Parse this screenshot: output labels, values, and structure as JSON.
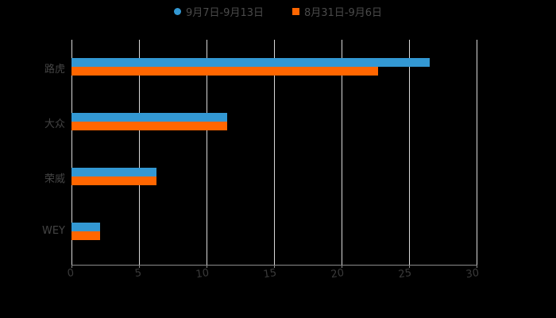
{
  "chart_data": {
    "type": "bar",
    "orientation": "horizontal",
    "title": "",
    "xlabel": "",
    "ylabel": "",
    "xlim": [
      0,
      30
    ],
    "x_ticks": [
      "0",
      "5",
      "10",
      "15",
      "20",
      "25",
      "30"
    ],
    "grid": true,
    "legend_position": "top",
    "categories": [
      "路虎",
      "大众",
      "荣威",
      "WEY"
    ],
    "series": [
      {
        "name": "9月7日-9月13日",
        "color": "#3398D3",
        "marker": "circle",
        "values": [
          26.5,
          11.5,
          6.3,
          2.1
        ]
      },
      {
        "name": "8月31日-9月6日",
        "color": "#FF6600",
        "marker": "square",
        "values": [
          22.7,
          11.5,
          6.3,
          2.1
        ]
      }
    ]
  },
  "legend": {
    "items": [
      {
        "label": "9月7日-9月13日",
        "color": "#3398D3"
      },
      {
        "label": "8月31日-9月6日",
        "color": "#FF6600"
      }
    ]
  }
}
